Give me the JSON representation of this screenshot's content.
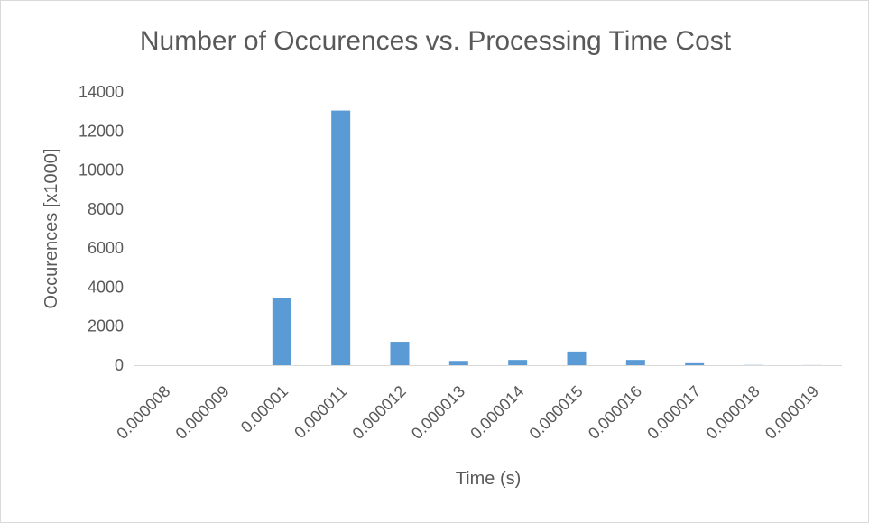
{
  "chart_data": {
    "type": "bar",
    "title": "Number of Occurences vs. Processing Time Cost",
    "xlabel": "Time (s)",
    "ylabel": "Occurences [x1000]",
    "categories": [
      "0.000008",
      "0.000009",
      "0.00001",
      "0.000011",
      "0.000012",
      "0.000013",
      "0.000014",
      "0.000015",
      "0.000016",
      "0.000017",
      "0.000018",
      "0.000019"
    ],
    "values": [
      0,
      0,
      3450,
      13050,
      1200,
      220,
      270,
      700,
      270,
      100,
      10,
      5
    ],
    "ylim": [
      0,
      14000
    ],
    "yticks": [
      0,
      2000,
      4000,
      6000,
      8000,
      10000,
      12000,
      14000
    ],
    "grid": false,
    "legend": "none",
    "bar_color": "#5b9bd5",
    "axis_color": "#d9d9d9",
    "text_color": "#595959"
  }
}
